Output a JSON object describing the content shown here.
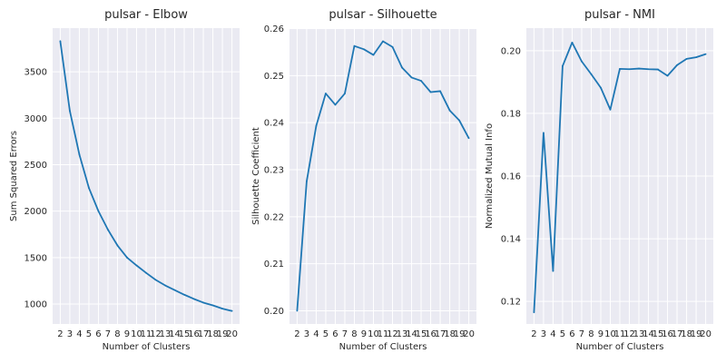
{
  "chart_data": [
    {
      "type": "line",
      "title": "pulsar - Elbow",
      "xlabel": "Number of Clusters",
      "ylabel": "Sum Squared Errors",
      "x": [
        2,
        3,
        4,
        5,
        6,
        7,
        8,
        9,
        10,
        11,
        12,
        13,
        14,
        15,
        16,
        17,
        18,
        19,
        20
      ],
      "series": [
        {
          "values": [
            3830,
            3080,
            2610,
            2250,
            2000,
            1800,
            1630,
            1500,
            1415,
            1335,
            1260,
            1200,
            1150,
            1100,
            1055,
            1015,
            985,
            950,
            925
          ]
        }
      ],
      "xlim": [
        1.2,
        20.8
      ],
      "ylim": [
        785,
        3970
      ],
      "yticks": [
        1000,
        1500,
        2000,
        2500,
        3000,
        3500
      ],
      "ytick_labels": [
        "1000",
        "1500",
        "2000",
        "2500",
        "3000",
        "3500"
      ],
      "grid": true,
      "color": "#1f77b4"
    },
    {
      "type": "line",
      "title": "pulsar - Silhouette",
      "xlabel": "Number of Clusters",
      "ylabel": "Silhouette Coefficient",
      "x": [
        2,
        3,
        4,
        5,
        6,
        7,
        8,
        9,
        10,
        11,
        12,
        13,
        14,
        15,
        16,
        17,
        18,
        19,
        20
      ],
      "series": [
        {
          "values": [
            0.2,
            0.2275,
            0.2393,
            0.2462,
            0.2438,
            0.2462,
            0.2563,
            0.2556,
            0.2544,
            0.2573,
            0.2561,
            0.2517,
            0.2496,
            0.2489,
            0.2465,
            0.2467,
            0.2426,
            0.2405,
            0.2367
          ]
        }
      ],
      "xlim": [
        1.2,
        20.8
      ],
      "ylim": [
        0.1972,
        0.2601
      ],
      "yticks": [
        0.2,
        0.21,
        0.22,
        0.23,
        0.24,
        0.25,
        0.26
      ],
      "ytick_labels": [
        "0.20",
        "0.21",
        "0.22",
        "0.23",
        "0.24",
        "0.25",
        "0.26"
      ],
      "grid": true,
      "color": "#1f77b4"
    },
    {
      "type": "line",
      "title": "pulsar - NMI",
      "xlabel": "Number of Clusters",
      "ylabel": "Normalized Mutual Info",
      "x": [
        2,
        3,
        4,
        5,
        6,
        7,
        8,
        9,
        10,
        11,
        12,
        13,
        14,
        15,
        16,
        17,
        18,
        19,
        20
      ],
      "series": [
        {
          "values": [
            0.1165,
            0.1738,
            0.1297,
            0.1951,
            0.2026,
            0.1966,
            0.1925,
            0.1882,
            0.1812,
            0.1942,
            0.1941,
            0.1943,
            0.1941,
            0.194,
            0.192,
            0.1954,
            0.1974,
            0.1979,
            0.1989
          ]
        }
      ],
      "xlim": [
        1.2,
        20.8
      ],
      "ylim": [
        0.1128,
        0.2072
      ],
      "yticks": [
        0.12,
        0.14,
        0.16,
        0.18,
        0.2
      ],
      "ytick_labels": [
        "0.12",
        "0.14",
        "0.16",
        "0.18",
        "0.20"
      ],
      "grid": true,
      "color": "#1f77b4"
    }
  ]
}
